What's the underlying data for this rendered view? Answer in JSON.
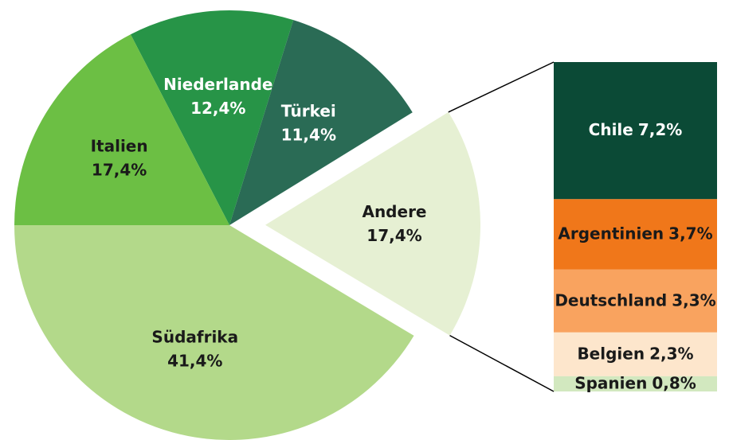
{
  "chart_data": {
    "type": "pie",
    "categories": [
      "Südafrika",
      "Andere",
      "Türkei",
      "Niederlande",
      "Italien"
    ],
    "values": [
      41.4,
      17.4,
      11.4,
      12.4,
      17.4
    ],
    "value_labels": [
      "41,4%",
      "17,4%",
      "11,4%",
      "12,4%",
      "17,4%"
    ],
    "colors": [
      "#b3d98a",
      "#e6f0d3",
      "#2a6b55",
      "#279447",
      "#6cbf44"
    ],
    "label_colors": [
      "#1a1a1a",
      "#1a1a1a",
      "#ffffff",
      "#ffffff",
      "#1a1a1a"
    ],
    "breakdown": {
      "type": "bar",
      "categories": [
        "Chile",
        "Argentinien",
        "Deutschland",
        "Belgien",
        "Spanien"
      ],
      "values": [
        7.2,
        3.7,
        3.3,
        2.3,
        0.8
      ],
      "value_labels": [
        "7,2%",
        "3,7%",
        "3,3%",
        "2,3%",
        "0,8%"
      ],
      "colors": [
        "#0b4a36",
        "#f0771a",
        "#f9a35f",
        "#fde6cc",
        "#d2e8bf"
      ],
      "label_colors": [
        "#ffffff",
        "#1a1a1a",
        "#1a1a1a",
        "#1a1a1a",
        "#1a1a1a"
      ]
    }
  }
}
